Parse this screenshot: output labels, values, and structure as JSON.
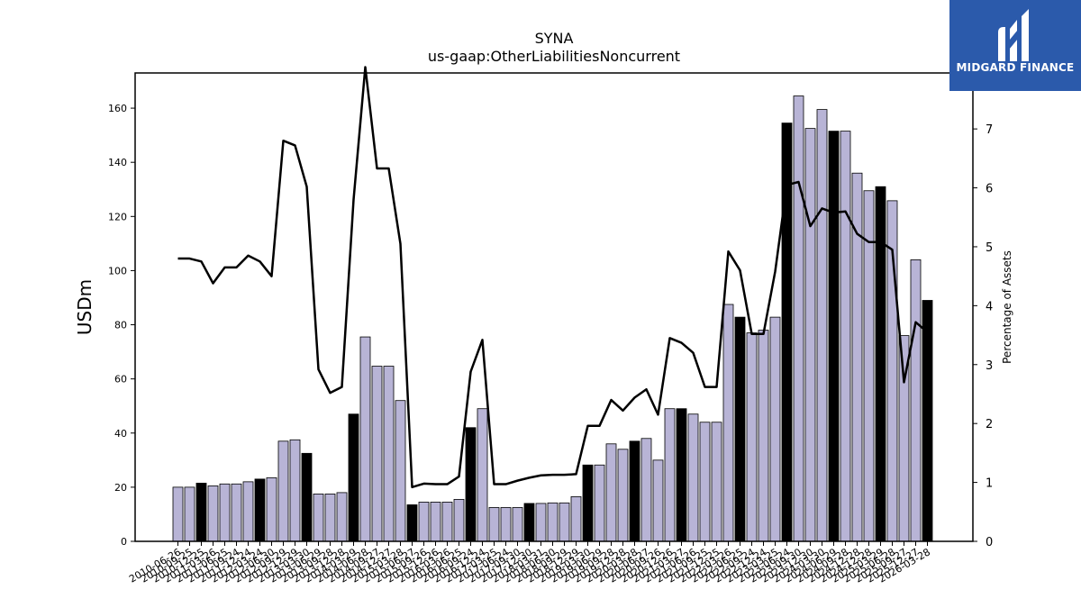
{
  "chart_data": {
    "type": "bar",
    "title": "SYNA",
    "subtitle": "us-gaap:OtherLiabilitiesNoncurrent",
    "ylabel": "USDm",
    "y2label": "Percentage of Assets",
    "ylim": [
      0,
      173
    ],
    "y2lim": [
      0,
      7.95
    ],
    "yticks": [
      0,
      20,
      40,
      60,
      80,
      100,
      120,
      140,
      160
    ],
    "y2ticks": [
      0,
      1,
      2,
      3,
      4,
      5,
      6,
      7
    ],
    "categories": [
      "2010-06-26",
      "2010-09-25",
      "2010-12-25",
      "2011-03-26",
      "2011-06-25",
      "2011-09-24",
      "2011-12-24",
      "2012-03-24",
      "2012-06-30",
      "2012-09-29",
      "2012-12-29",
      "2013-03-30",
      "2013-06-29",
      "2013-09-28",
      "2013-12-28",
      "2014-03-29",
      "2014-06-28",
      "2014-09-27",
      "2014-12-27",
      "2015-03-28",
      "2015-06-27",
      "2015-09-26",
      "2015-12-26",
      "2016-03-26",
      "2016-06-25",
      "2016-09-24",
      "2016-12-24",
      "2017-03-25",
      "2017-06-24",
      "2017-09-30",
      "2017-12-30",
      "2018-03-31",
      "2018-06-30",
      "2018-09-29",
      "2018-12-29",
      "2019-03-30",
      "2019-06-29",
      "2019-09-28",
      "2019-12-28",
      "2020-03-28",
      "2020-06-27",
      "2020-09-26",
      "2020-12-26",
      "2021-03-27",
      "2021-06-26",
      "2021-09-25",
      "2021-12-25",
      "2022-03-26",
      "2022-06-25",
      "2022-09-24",
      "2022-12-24",
      "2023-03-25",
      "2023-06-24",
      "2023-09-30",
      "2023-12-30",
      "2024-03-30",
      "2024-06-29",
      "2024-09-28",
      "2024-12-28",
      "2024-12-28",
      "2025-03-29",
      "2025-06-28",
      "2025-09-27",
      "2025-12-27",
      "2026-03-28"
    ],
    "visible_tick_labels": [
      "2010-06-26",
      "2010-09-25",
      "2010-12-25",
      "2011-03-26",
      "2011-06-25",
      "2011-09-24",
      "2011-12-24",
      "2012-03-24",
      "2012-06-30",
      "2012-09-29",
      "2012-12-29",
      "2013-03-30",
      "2013-06-29",
      "2013-09-28",
      "2013-12-28",
      "2014-03-29",
      "2014-06-28",
      "2014-09-27",
      "2014-12-27",
      "2015-03-28",
      "2015-06-27",
      "2015-09-26",
      "2015-12-26",
      "2016-03-26",
      "2016-06-25",
      "2016-09-24",
      "2016-12-24",
      "2017-03-25",
      "2017-06-24",
      "2017-09-30",
      "2017-12-30",
      "2018-03-31",
      "2018-06-30",
      "2018-09-29",
      "2018-12-29",
      "2019-03-30",
      "2019-06-29",
      "2019-09-28",
      "2019-12-28",
      "2020-03-28",
      "2020-06-27",
      "2020-09-26",
      "2020-12-26",
      "2021-03-27",
      "2021-06-26",
      "2021-09-25",
      "2021-12-25",
      "2022-03-26",
      "2022-06-25",
      "2022-09-24",
      "2022-12-24",
      "2023-03-25",
      "2023-06-24",
      "2023-09-30",
      "2023-12-30",
      "2024-03-30",
      "2024-06-29",
      "2024-09-28",
      "2024-12-28",
      "2024-12-28",
      "2025-03-29",
      "2025-06-28",
      "2025-09-27",
      "2025-12-27",
      "2026-03-28"
    ],
    "series": [
      {
        "type": "bar",
        "axis": "left",
        "values": [
          20,
          20,
          21.5,
          20.5,
          21.2,
          21.2,
          22,
          23,
          23.5,
          37,
          37.5,
          32.5,
          17.5,
          17.5,
          18,
          47,
          75.5,
          64.7,
          64.7,
          52,
          13.5,
          14.5,
          14.5,
          14.5,
          15.5,
          42,
          49,
          12.5,
          12.5,
          12.5,
          14,
          14,
          14.2,
          14.2,
          16.5,
          28.2,
          28.2,
          36,
          34,
          37,
          38,
          30,
          49,
          49,
          47,
          44,
          44,
          87.5,
          82.8,
          77,
          78,
          82.8,
          154.5,
          164.5,
          152.5,
          159.5,
          151.5,
          151.5,
          136,
          129.5,
          131,
          125.8,
          76,
          104,
          89
        ],
        "highlight": [
          false,
          false,
          true,
          false,
          false,
          false,
          false,
          true,
          false,
          false,
          false,
          true,
          false,
          false,
          false,
          true,
          false,
          false,
          false,
          false,
          true,
          false,
          false,
          false,
          false,
          true,
          false,
          false,
          false,
          false,
          true,
          false,
          false,
          false,
          false,
          true,
          false,
          false,
          false,
          true,
          false,
          false,
          false,
          true,
          false,
          false,
          false,
          false,
          true,
          false,
          false,
          false,
          true,
          false,
          false,
          false,
          true,
          false,
          false,
          false,
          true,
          false,
          false,
          false,
          true
        ]
      },
      {
        "type": "line",
        "axis": "right",
        "values": [
          4.8,
          4.8,
          4.75,
          4.38,
          4.65,
          4.65,
          4.85,
          4.75,
          4.5,
          6.8,
          6.72,
          6.02,
          2.92,
          2.52,
          2.62,
          5.8,
          8.05,
          6.33,
          6.33,
          5.05,
          0.92,
          0.98,
          0.97,
          0.97,
          1.1,
          2.88,
          3.42,
          0.97,
          0.97,
          1.03,
          1.08,
          1.12,
          1.13,
          1.13,
          1.14,
          1.96,
          1.96,
          2.4,
          2.22,
          2.44,
          2.58,
          2.15,
          3.45,
          3.37,
          3.2,
          2.62,
          2.62,
          4.92,
          4.6,
          3.52,
          3.52,
          4.58,
          6.05,
          6.1,
          5.35,
          5.65,
          5.58,
          5.6,
          5.22,
          5.08,
          5.08,
          4.95,
          2.7,
          3.72,
          3.55
        ]
      }
    ],
    "grid": false,
    "legend": "none",
    "colors": {
      "bar_fill": "#b8b4d6",
      "bar_highlight": "#000000",
      "bar_edge": "#000000",
      "line": "#000000"
    }
  },
  "logo": {
    "text": "MIDGARD FINANCE",
    "bg_color": "#2b5aab"
  }
}
